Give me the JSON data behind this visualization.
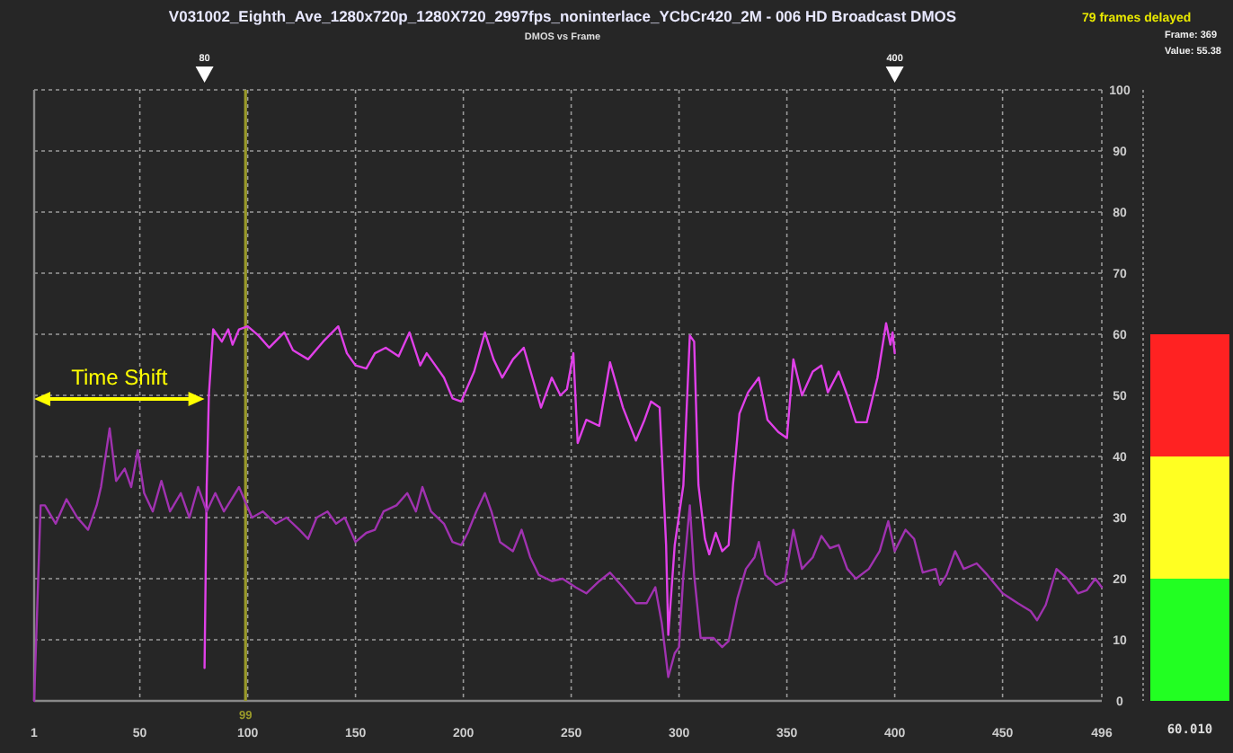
{
  "chart_data": [
    {
      "type": "line",
      "title": "V031002_Eighth_Ave_1280x720p_1280X720_2997fps_noninterlace_YCbCr420_2M - 006 HD Broadcast DMOS",
      "subtitle": "DMOS vs Frame",
      "annotations": [
        "79 frames delayed",
        "Frame: 369",
        "Value: 55.38",
        "80",
        "400",
        "Time Shift"
      ],
      "xlim": [
        1,
        496
      ],
      "xticks": [
        1,
        50,
        100,
        150,
        200,
        250,
        300,
        350,
        400,
        450,
        496
      ],
      "ylim": [
        0,
        100
      ],
      "yticks": [
        0,
        10,
        20,
        30,
        40,
        50,
        60,
        70,
        80,
        90,
        100
      ],
      "grid": true,
      "ref_lines": [
        {
          "axis": "x",
          "value": 99,
          "label": "99",
          "color": "#9a9a2a"
        }
      ],
      "series": [
        {
          "color": "#e040e8",
          "x": [
            80,
            81,
            82,
            84,
            88,
            91,
            93,
            96,
            100,
            105,
            110,
            117,
            121,
            128,
            135,
            142,
            146,
            150,
            155,
            159,
            164,
            170,
            175,
            180,
            183,
            187,
            191,
            195,
            199,
            205,
            210,
            214,
            218,
            223,
            228,
            232,
            236,
            241,
            245,
            248,
            251,
            253,
            257,
            263,
            268,
            274,
            280,
            284,
            287,
            291,
            294,
            295,
            298,
            300,
            302,
            305,
            307,
            309,
            312,
            314,
            317,
            320,
            323,
            325,
            328,
            332,
            337,
            341,
            346,
            350,
            353,
            357,
            362,
            366,
            369,
            374,
            378,
            382,
            387,
            392,
            396,
            398,
            399,
            400
          ],
          "values": [
            5.4,
            35,
            50,
            60.8,
            58.8,
            60.8,
            58.3,
            60.8,
            61.3,
            59.8,
            57.8,
            60.3,
            57.4,
            55.9,
            58.8,
            61.3,
            56.9,
            54.9,
            54.4,
            56.9,
            57.8,
            56.4,
            60.3,
            54.9,
            56.9,
            54.9,
            52.9,
            49.5,
            49,
            53.9,
            60.3,
            55.9,
            52.9,
            55.9,
            57.8,
            52.9,
            48,
            52.9,
            50,
            51,
            56.9,
            42.2,
            46,
            45,
            55.4,
            48,
            42.6,
            46,
            49,
            48,
            25.5,
            10.8,
            25.5,
            30.4,
            35.3,
            59.8,
            58.8,
            35.3,
            26.5,
            24,
            27.5,
            24.5,
            25.5,
            35.3,
            47,
            50.5,
            52.9,
            46,
            44,
            43,
            55.9,
            50,
            53.9,
            54.9,
            50.5,
            53.9,
            50,
            45.6,
            45.6,
            52.9,
            61.8,
            58.3,
            60.3,
            56.9
          ]
        },
        {
          "color": "#a032b0",
          "x": [
            1,
            4,
            6,
            11,
            16,
            21,
            26,
            30,
            32,
            36,
            39,
            43,
            46,
            49,
            52,
            56,
            60,
            64,
            69,
            73,
            77,
            81,
            85,
            89,
            96,
            102,
            107,
            113,
            118,
            124,
            128,
            132,
            137,
            141,
            145,
            150,
            155,
            159,
            163,
            169,
            174,
            178,
            181,
            185,
            191,
            195,
            199,
            202,
            206,
            210,
            213,
            217,
            223,
            227,
            231,
            235,
            241,
            246,
            252,
            257,
            263,
            268,
            274,
            280,
            285,
            289,
            292,
            295,
            298,
            300,
            302,
            305,
            307,
            310,
            316,
            320,
            323,
            327,
            331,
            335,
            337,
            340,
            345,
            349,
            353,
            357,
            362,
            366,
            370,
            374,
            378,
            382,
            388,
            393,
            397,
            400,
            405,
            409,
            413,
            419,
            421,
            424,
            428,
            432,
            438,
            443,
            450,
            457,
            463,
            466,
            470,
            475,
            480,
            485,
            489,
            493,
            496
          ],
          "values": [
            0,
            32,
            32,
            29,
            33,
            30,
            28,
            32,
            35,
            44.6,
            36,
            38,
            35,
            41,
            34,
            31,
            36,
            31,
            34,
            30,
            35,
            31,
            34,
            31,
            35,
            30,
            31,
            29,
            30,
            28,
            26.5,
            30,
            31,
            29,
            30,
            26,
            27.5,
            28,
            31,
            32,
            34,
            31,
            35,
            31,
            29,
            26,
            25.5,
            27.5,
            31,
            34,
            31,
            26,
            24.5,
            28,
            23.5,
            20.6,
            19.6,
            20,
            18.6,
            17.6,
            19.6,
            21,
            18.6,
            16,
            16,
            18.6,
            12.7,
            3.9,
            7.8,
            8.8,
            20.6,
            32,
            20.6,
            10.3,
            10.3,
            8.8,
            9.8,
            16.7,
            21.6,
            23.5,
            26,
            20.6,
            19,
            19.6,
            28,
            21.6,
            23.5,
            27,
            25,
            25.5,
            21.6,
            20,
            21.6,
            24.5,
            29.4,
            24.5,
            28,
            26.5,
            21,
            21.6,
            19,
            20.6,
            24.5,
            21.6,
            22.5,
            20.6,
            17.6,
            16,
            14.7,
            13.2,
            15.7,
            21.6,
            20,
            17.6,
            18.1,
            20,
            18.6
          ]
        }
      ]
    },
    {
      "type": "bar",
      "stacked": true,
      "categories": [
        null
      ],
      "ylim": [
        0,
        100
      ],
      "annotations": [
        "60.010"
      ],
      "series": [
        {
          "color": "#22ff22",
          "values": [
            20
          ]
        },
        {
          "color": "#ffff22",
          "values": [
            20
          ]
        },
        {
          "color": "#ff2222",
          "values": [
            20
          ]
        }
      ]
    }
  ]
}
